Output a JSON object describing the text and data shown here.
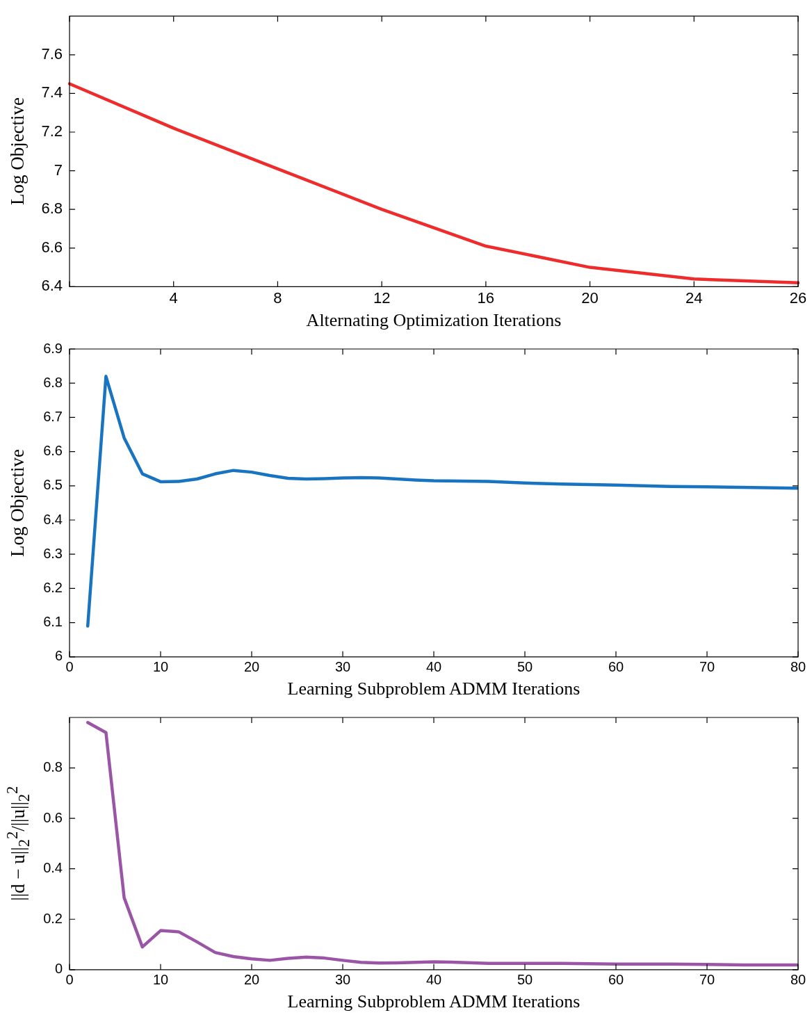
{
  "chart_data": [
    {
      "type": "line",
      "xlabel": "Alternating Optimization Iterations",
      "ylabel": "Log Objective",
      "categories": [
        null,
        "4",
        "8",
        "12",
        "16",
        "20",
        "24",
        "26"
      ],
      "ylim": [
        6.4,
        7.8
      ],
      "yticks": [
        6.4,
        6.6,
        6.8,
        7,
        7.2,
        7.4,
        7.6
      ],
      "marker": "none",
      "series": [
        {
          "color": "#ee2c2c",
          "values": [
            7.45,
            7.22,
            7.01,
            6.8,
            6.61,
            6.5,
            6.44,
            6.42
          ]
        }
      ]
    },
    {
      "type": "line",
      "xlabel": "Learning Subproblem ADMM Iterations",
      "ylabel": "Log Objective",
      "xlim": [
        0,
        80
      ],
      "xticks": [
        0,
        10,
        20,
        30,
        40,
        50,
        60,
        70,
        80
      ],
      "ylim": [
        6,
        6.9
      ],
      "yticks": [
        6,
        6.1,
        6.2,
        6.3,
        6.4,
        6.5,
        6.6,
        6.7,
        6.8,
        6.9
      ],
      "marker": "none",
      "series": [
        {
          "color": "#1874c1",
          "x": [
            2,
            4,
            6,
            8,
            10,
            12,
            14,
            16,
            18,
            20,
            22,
            24,
            26,
            28,
            30,
            32,
            34,
            36,
            38,
            40,
            46,
            50,
            54,
            60,
            66,
            70,
            80
          ],
          "values": [
            6.09,
            6.82,
            6.64,
            6.535,
            6.512,
            6.513,
            6.52,
            6.535,
            6.545,
            6.54,
            6.53,
            6.522,
            6.52,
            6.521,
            6.523,
            6.524,
            6.523,
            6.52,
            6.517,
            6.515,
            6.513,
            6.508,
            6.505,
            6.502,
            6.498,
            6.497,
            6.493
          ]
        }
      ]
    },
    {
      "type": "line",
      "xlabel": "Learning Subproblem ADMM Iterations",
      "ylabel": "||d − u||$_{2}$$^{2}$/||u||$_{2}$$^{2}$",
      "xlim": [
        0,
        80
      ],
      "xticks": [
        0,
        10,
        20,
        30,
        40,
        50,
        60,
        70,
        80
      ],
      "ylim": [
        0,
        1
      ],
      "yticks": [
        0,
        0.2,
        0.4,
        0.6,
        0.8
      ],
      "marker": "none",
      "series": [
        {
          "color": "#9b55a7",
          "x": [
            2,
            4,
            6,
            8,
            10,
            12,
            14,
            16,
            18,
            20,
            22,
            24,
            26,
            28,
            30,
            32,
            34,
            36,
            40,
            42,
            46,
            50,
            54,
            60,
            66,
            70,
            74,
            80
          ],
          "values": [
            0.98,
            0.94,
            0.285,
            0.09,
            0.155,
            0.15,
            0.11,
            0.068,
            0.052,
            0.043,
            0.037,
            0.045,
            0.05,
            0.046,
            0.037,
            0.029,
            0.026,
            0.027,
            0.031,
            0.03,
            0.025,
            0.025,
            0.025,
            0.022,
            0.022,
            0.021,
            0.019,
            0.019
          ]
        }
      ]
    }
  ]
}
